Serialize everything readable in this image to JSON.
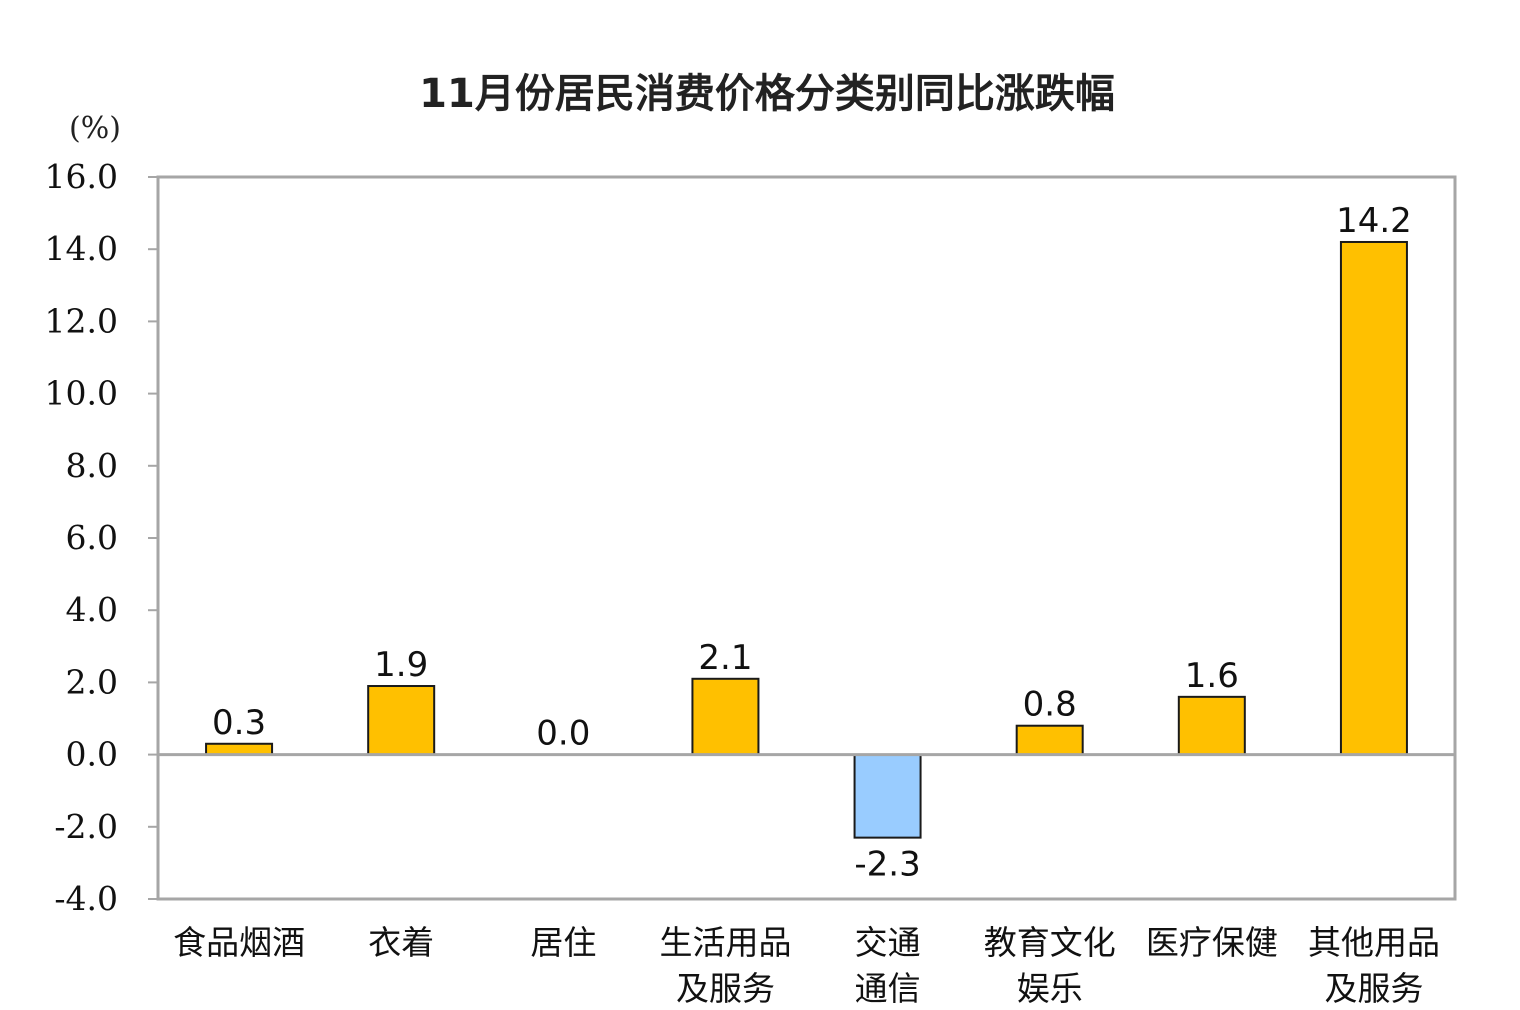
{
  "colors": {
    "positive_bar": "#FFC000",
    "negative_bar": "#99CCFF",
    "bar_stroke": "#1a1a1a",
    "frame": "#a6a6a6"
  },
  "chart_data": {
    "type": "bar",
    "title": "11月份居民消费价格分类别同比涨跌幅",
    "unit_label": "(%)",
    "ylim": [
      -4.0,
      16.0
    ],
    "yticks": [
      "16.0",
      "14.0",
      "12.0",
      "10.0",
      "8.0",
      "6.0",
      "4.0",
      "2.0",
      "0.0",
      "-2.0",
      "-4.0"
    ],
    "grid": false,
    "legend": "none",
    "categories": [
      [
        "食品烟酒"
      ],
      [
        "衣着"
      ],
      [
        "居住"
      ],
      [
        "生活用品",
        "及服务"
      ],
      [
        "交通",
        "通信"
      ],
      [
        "教育文化",
        "娱乐"
      ],
      [
        "医疗保健"
      ],
      [
        "其他用品",
        "及服务"
      ]
    ],
    "values": [
      0.3,
      1.9,
      0.0,
      2.1,
      -2.3,
      0.8,
      1.6,
      14.2
    ],
    "value_labels": [
      "0.3",
      "1.9",
      "0.0",
      "2.1",
      "-2.3",
      "0.8",
      "1.6",
      "14.2"
    ]
  }
}
